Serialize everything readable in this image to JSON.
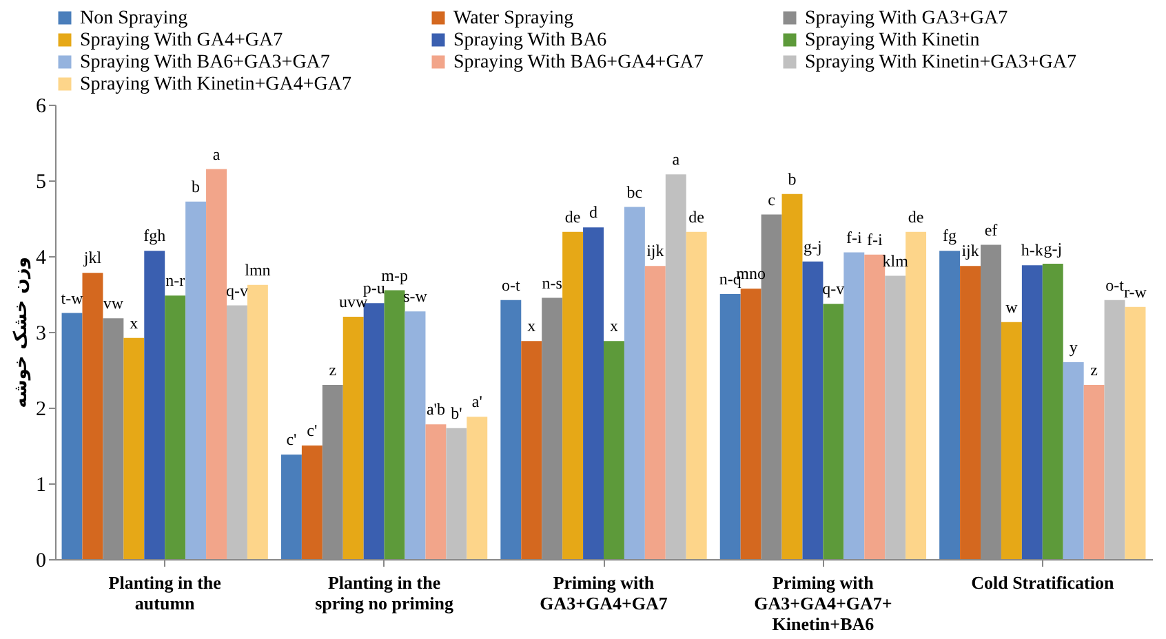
{
  "chart_data": {
    "type": "bar",
    "ylabel": "وزن خشک خوشه",
    "categories": [
      "Planting in the autumn",
      "Planting in the spring no priming",
      "Priming with GA3+GA4+GA7",
      "Priming with GA3+GA4+GA7+ Kinetin+BA6",
      "Cold Stratification"
    ],
    "ylim": [
      0,
      6
    ],
    "yticks": [
      0,
      1,
      2,
      3,
      4,
      5,
      6
    ],
    "legend": "top",
    "grid": false,
    "series": [
      {
        "name": "Non Spraying",
        "color": "#4a7ebb",
        "values": [
          3.25,
          1.38,
          3.42,
          3.5,
          4.07
        ],
        "value_labels": [
          "t-w",
          "c'",
          "o-t",
          "n-q",
          "fg"
        ]
      },
      {
        "name": "Water Spraying",
        "color": "#d4681f",
        "values": [
          3.78,
          1.5,
          2.88,
          3.57,
          3.87
        ],
        "value_labels": [
          "jkl",
          "c'",
          "x",
          "mno",
          "ijk"
        ]
      },
      {
        "name": "Spraying With GA3+GA7",
        "color": "#8c8c8c",
        "values": [
          3.18,
          2.3,
          3.45,
          4.55,
          4.15
        ],
        "value_labels": [
          "vw",
          "z",
          "n-s",
          "c",
          "ef"
        ]
      },
      {
        "name": "Spraying With GA4+GA7",
        "color": "#e6a817",
        "values": [
          2.92,
          3.2,
          4.32,
          4.82,
          3.13
        ],
        "value_labels": [
          "x",
          "uvw",
          "de",
          "b",
          "w"
        ]
      },
      {
        "name": "Spraying With BA6",
        "color": "#3a5fb0",
        "values": [
          4.07,
          3.38,
          4.38,
          3.93,
          3.88
        ],
        "value_labels": [
          "fgh",
          "p-u",
          "d",
          "g-j",
          "h-k"
        ]
      },
      {
        "name": "Spraying With Kinetin",
        "color": "#5d9a3a",
        "values": [
          3.48,
          3.55,
          2.88,
          3.37,
          3.9
        ],
        "value_labels": [
          "n-r",
          "m-p",
          "x",
          "q-v",
          "g-j"
        ]
      },
      {
        "name": "Spraying With BA6+GA3+GA7",
        "color": "#95b3de",
        "values": [
          4.72,
          3.27,
          4.65,
          4.05,
          2.6
        ],
        "value_labels": [
          "b",
          "s-w",
          "bc",
          "f-i",
          "y"
        ]
      },
      {
        "name": "Spraying With BA6+GA4+GA7",
        "color": "#f2a58a",
        "values": [
          5.15,
          1.78,
          3.87,
          4.02,
          2.3
        ],
        "value_labels": [
          "a",
          "a'b",
          "ijk",
          "f-i",
          "z"
        ]
      },
      {
        "name": "Spraying With Kinetin+GA3+GA7",
        "color": "#c0c0c0",
        "values": [
          3.35,
          1.73,
          5.08,
          3.74,
          3.42
        ],
        "value_labels": [
          "q-v",
          "b'",
          "a",
          "klm",
          "o-t"
        ]
      },
      {
        "name": "Spraying With Kinetin+GA4+GA7",
        "color": "#fdd58a",
        "values": [
          3.62,
          1.88,
          4.32,
          4.32,
          3.33
        ],
        "value_labels": [
          "lmn",
          "a'",
          "de",
          "de",
          "r-w"
        ]
      }
    ]
  }
}
